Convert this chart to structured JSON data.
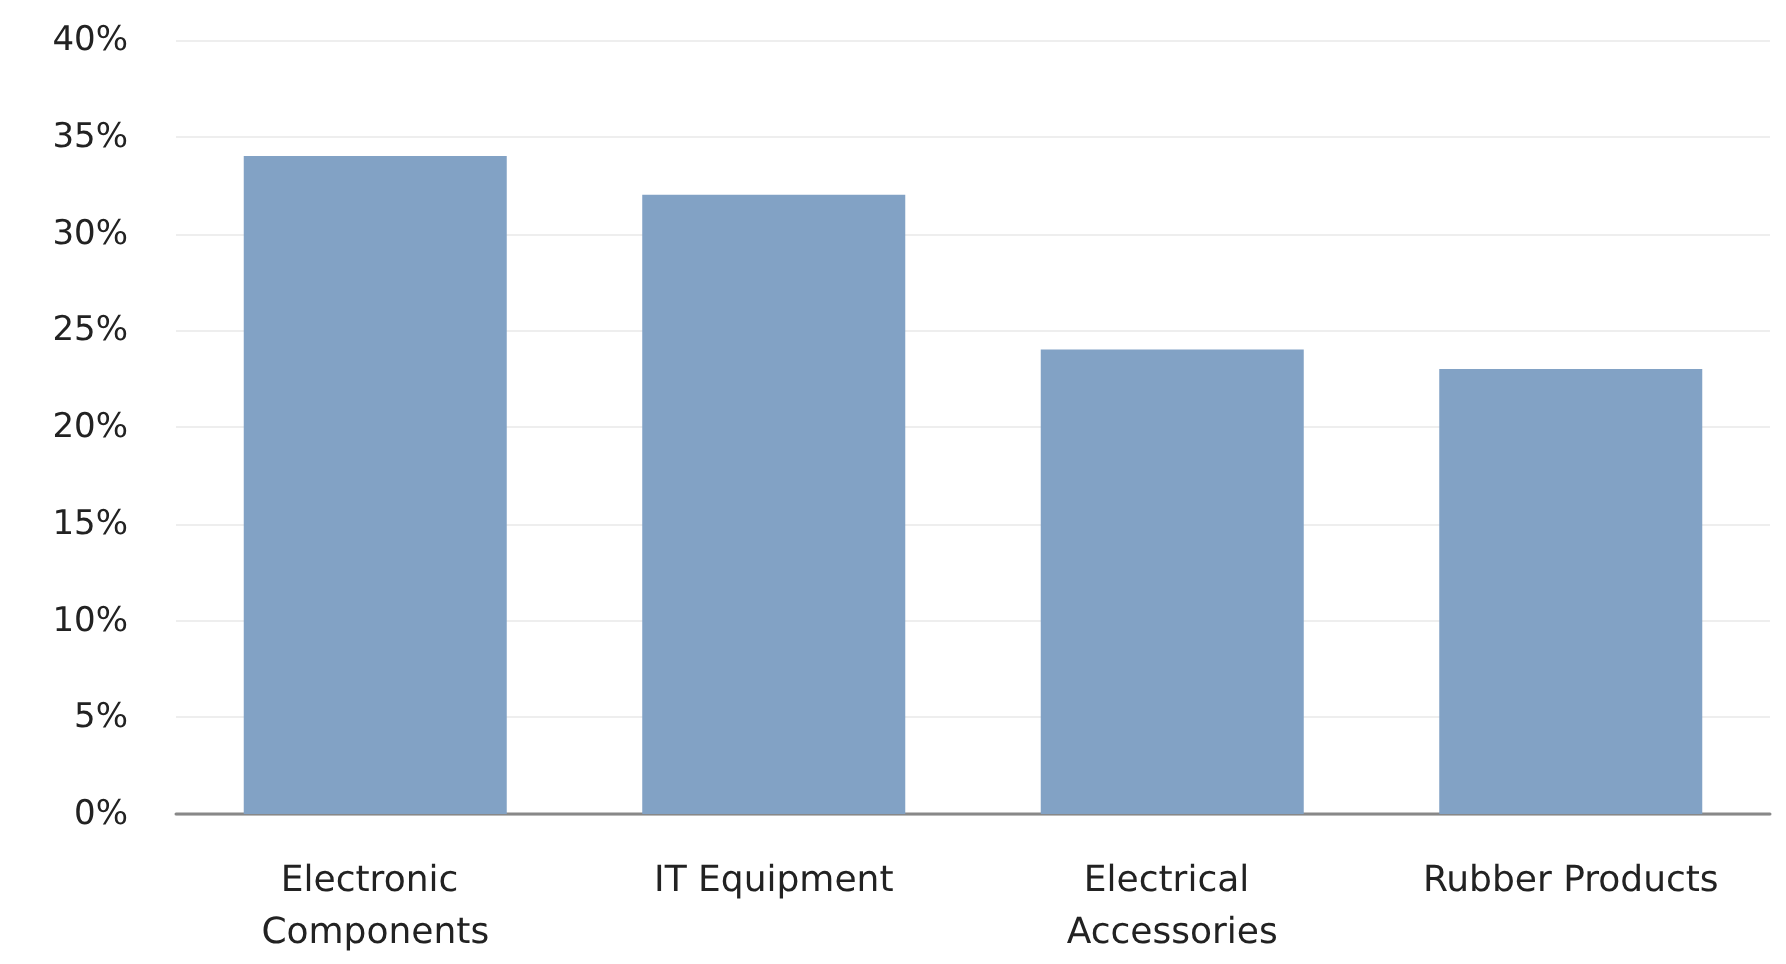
{
  "chart_data": {
    "type": "bar",
    "categories": [
      "Electronic Components",
      "IT Equipment",
      "Electrical Accessories",
      "Rubber Products"
    ],
    "values": [
      34,
      32,
      24,
      23
    ],
    "color": "#82a2c5",
    "ylim": [
      0,
      40
    ],
    "yticks": [
      {
        "value": 0,
        "label": "0%"
      },
      {
        "value": 5,
        "label": "5%"
      },
      {
        "value": 10,
        "label": "10%"
      },
      {
        "value": 15,
        "label": "15%"
      },
      {
        "value": 20,
        "label": "20%"
      },
      {
        "value": 25,
        "label": "25%"
      },
      {
        "value": 30,
        "label": "30%"
      },
      {
        "value": 35,
        "label": "35%"
      },
      {
        "value": 40,
        "label": "40%"
      }
    ],
    "grid": "y"
  }
}
